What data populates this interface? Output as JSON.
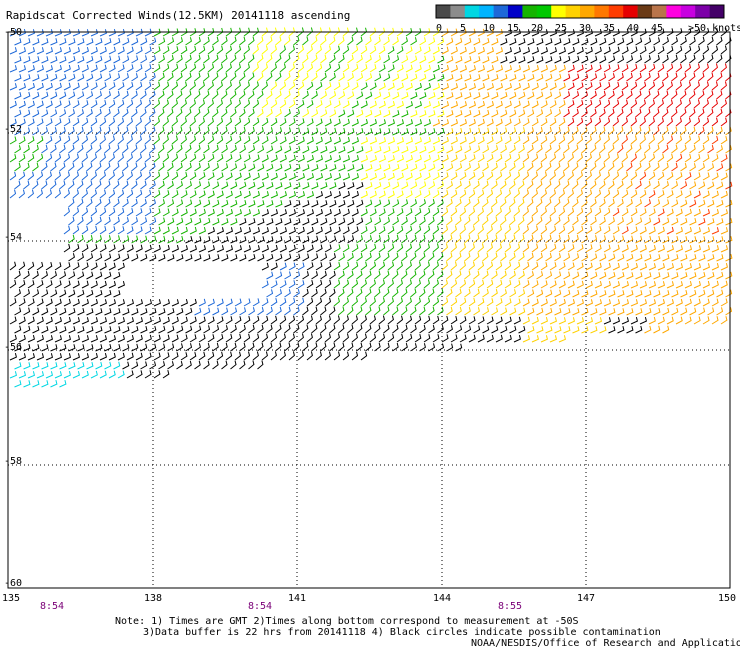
{
  "title": "Rapidscat Corrected Winds(12.5KM) 20141118 ascending",
  "legend": {
    "colors": [
      "#4a4a4a",
      "#8c8c8c",
      "#00d7e3",
      "#00b4ff",
      "#1d68d8",
      "#0000c8",
      "#15b400",
      "#00c800",
      "#ffff00",
      "#ffd200",
      "#ffa800",
      "#ff7800",
      "#ff3c00",
      "#e60000",
      "#6a3a16",
      "#b9744a",
      "#ff00e0",
      "#c800e0",
      "#7c00a8",
      "#440068"
    ],
    "labels": [
      "0",
      "5",
      "10",
      "15",
      "20",
      "25",
      "30",
      "35",
      "40",
      "45",
      ">50 knots"
    ]
  },
  "y_labels": [
    "-50",
    "-52",
    "-54",
    "-56",
    "-58",
    "-60"
  ],
  "x_labels": [
    "135",
    "138",
    "141",
    "144",
    "147",
    "150"
  ],
  "time_labels": [
    "8:54",
    "8:54",
    "8:55"
  ],
  "notes": [
    "Note: 1) Times are GMT 2)Times along bottom correspond to measurement at -50S",
    "3)Data buffer is 22 hrs from 20141118 4) Black circles indicate possible contamination",
    "NOAA/NESDIS/Office of Research and Applications"
  ],
  "map_data": {
    "lon_range": [
      135,
      150
    ],
    "lat_range": [
      -60,
      -50
    ],
    "wind_bands": [
      {
        "region": "northwest",
        "speed_knots": "10-15",
        "color": "#1d68d8"
      },
      {
        "region": "north-central",
        "speed_knots": "15-25",
        "color": "#15b400"
      },
      {
        "region": "north-central yellow",
        "speed_knots": "20-25",
        "color": "#ffff00"
      },
      {
        "region": "northeast",
        "speed_knots": "30-35",
        "color": "#e60000"
      },
      {
        "region": "east",
        "speed_knots": "25-30",
        "color": "#ffa800"
      },
      {
        "region": "southern swath",
        "speed_knots": "0-10",
        "color": "#000000"
      }
    ]
  }
}
